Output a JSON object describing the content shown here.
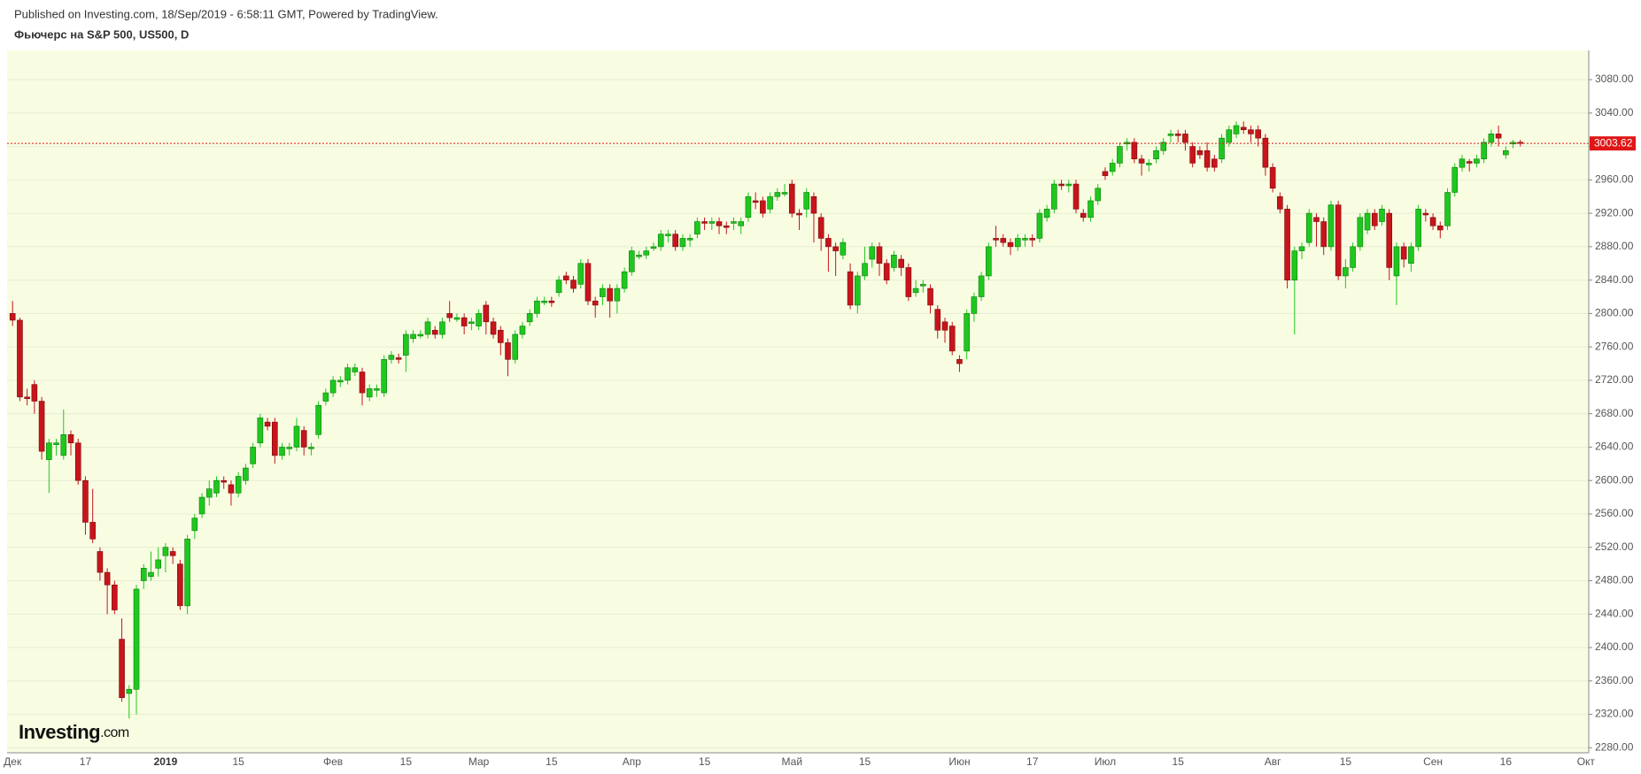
{
  "header": {
    "published": "Published on Investing.com, 18/Sep/2019 - 6:58:11 GMT, Powered by TradingView.",
    "symbol": "Фьючерс на S&P 500, US500, D"
  },
  "logo": {
    "main": "Investing",
    "suffix": ".com"
  },
  "chart_data": {
    "type": "candlestick",
    "categories": [
      "Дек",
      null,
      null,
      null,
      null,
      null,
      null,
      null,
      null,
      null,
      "17",
      null,
      null,
      null,
      null,
      null,
      null,
      null,
      null,
      null,
      null,
      "2019",
      null,
      null,
      null,
      null,
      null,
      null,
      null,
      null,
      null,
      "15",
      null,
      null,
      null,
      null,
      null,
      null,
      null,
      null,
      null,
      null,
      null,
      null,
      "Фев",
      null,
      null,
      null,
      null,
      null,
      null,
      null,
      null,
      null,
      "15",
      null,
      null,
      null,
      null,
      null,
      null,
      null,
      null,
      null,
      "Мар",
      null,
      null,
      null,
      null,
      null,
      null,
      null,
      null,
      null,
      "15",
      null,
      null,
      null,
      null,
      null,
      null,
      null,
      null,
      null,
      null,
      "Апр",
      null,
      null,
      null,
      null,
      null,
      null,
      null,
      null,
      null,
      "15",
      null,
      null,
      null,
      null,
      null,
      null,
      null,
      null,
      null,
      null,
      null,
      "Май",
      null,
      null,
      null,
      null,
      null,
      null,
      null,
      null,
      null,
      "15",
      null,
      null,
      null,
      null,
      null,
      null,
      null,
      null,
      null,
      null,
      null,
      null,
      "Июн",
      null,
      null,
      null,
      null,
      null,
      null,
      null,
      null,
      null,
      "17",
      null,
      null,
      null,
      null,
      null,
      null,
      null,
      null,
      null,
      "Июл",
      null,
      null,
      null,
      null,
      null,
      null,
      null,
      null,
      null,
      "15",
      null,
      null,
      null,
      null,
      null,
      null,
      null,
      null,
      null,
      null,
      null,
      null,
      "Авг",
      null,
      null,
      null,
      null,
      null,
      null,
      null,
      null,
      null,
      "15",
      null,
      null,
      null,
      null,
      null,
      null,
      null,
      null,
      null,
      null,
      null,
      "Сен",
      null,
      null,
      null,
      null,
      null,
      null,
      null,
      null,
      null,
      "16",
      null,
      null,
      null,
      null,
      null,
      null,
      null,
      null,
      null,
      null,
      "Окт"
    ],
    "open": [
      2800,
      2792,
      2700,
      2715,
      2695,
      2625,
      2643,
      2630,
      2655,
      2645,
      2600,
      2550,
      2515,
      2490,
      2475,
      2410,
      2345,
      2350,
      2480,
      2485,
      2495,
      2510,
      2515,
      2500,
      2450,
      2540,
      2560,
      2580,
      2585,
      2600,
      2595,
      2585,
      2600,
      2620,
      2645,
      2670,
      2670,
      2630,
      2638,
      2640,
      2660,
      2638,
      2655,
      2695,
      2705,
      2718,
      2720,
      2730,
      2730,
      2700,
      2708,
      2705,
      2745,
      2747,
      2750,
      2770,
      2773,
      2775,
      2780,
      2775,
      2800,
      2793,
      2795,
      2788,
      2785,
      2810,
      2790,
      2780,
      2765,
      2745,
      2775,
      2790,
      2800,
      2813,
      2815,
      2825,
      2845,
      2840,
      2835,
      2860,
      2815,
      2820,
      2830,
      2815,
      2830,
      2850,
      2868,
      2870,
      2878,
      2880,
      2893,
      2895,
      2880,
      2888,
      2895,
      2910,
      2908,
      2910,
      2905,
      2908,
      2905,
      2915,
      2935,
      2935,
      2925,
      2940,
      2943,
      2955,
      2920,
      2925,
      2940,
      2915,
      2890,
      2880,
      2870,
      2850,
      2810,
      2845,
      2865,
      2880,
      2860,
      2855,
      2865,
      2855,
      2825,
      2833,
      2830,
      2805,
      2790,
      2785,
      2745,
      2755,
      2800,
      2820,
      2845,
      2890,
      2890,
      2885,
      2880,
      2888,
      2890,
      2890,
      2915,
      2925,
      2955,
      2953,
      2955,
      2920,
      2915,
      2935,
      2970,
      2970,
      2980,
      3003,
      3005,
      2985,
      2978,
      2985,
      2995,
      3013,
      3015,
      3015,
      3000,
      2995,
      2995,
      2985,
      2985,
      3005,
      3015,
      3023,
      3020,
      3020,
      3010,
      2975,
      2940,
      2925,
      2840,
      2875,
      2885,
      2915,
      2910,
      2880,
      2930,
      2845,
      2855,
      2880,
      2900,
      2920,
      2910,
      2920,
      2845,
      2880,
      2860,
      2880,
      2920,
      2915,
      2905,
      2905,
      2945,
      2975,
      2982,
      2980,
      2985,
      3005,
      3015,
      2990,
      3003,
      3005,
      null,
      null,
      null,
      null,
      null,
      null,
      null,
      null,
      null
    ],
    "high": [
      2815,
      2795,
      2710,
      2720,
      2700,
      2650,
      2650,
      2685,
      2660,
      2650,
      2605,
      2590,
      2520,
      2495,
      2480,
      2435,
      2355,
      2475,
      2500,
      2515,
      2520,
      2525,
      2520,
      2505,
      2535,
      2560,
      2585,
      2600,
      2605,
      2605,
      2600,
      2610,
      2620,
      2645,
      2680,
      2675,
      2675,
      2645,
      2645,
      2675,
      2665,
      2645,
      2695,
      2710,
      2725,
      2725,
      2740,
      2740,
      2735,
      2715,
      2715,
      2750,
      2755,
      2752,
      2780,
      2780,
      2780,
      2795,
      2785,
      2795,
      2815,
      2800,
      2800,
      2795,
      2805,
      2815,
      2795,
      2785,
      2770,
      2780,
      2790,
      2805,
      2820,
      2820,
      2820,
      2845,
      2850,
      2845,
      2865,
      2865,
      2820,
      2835,
      2835,
      2835,
      2855,
      2880,
      2875,
      2880,
      2885,
      2900,
      2900,
      2900,
      2895,
      2895,
      2915,
      2915,
      2915,
      2915,
      2910,
      2915,
      2915,
      2945,
      2945,
      2940,
      2945,
      2950,
      2955,
      2960,
      2925,
      2950,
      2945,
      2920,
      2895,
      2885,
      2890,
      2860,
      2850,
      2880,
      2885,
      2885,
      2865,
      2875,
      2870,
      2860,
      2840,
      2840,
      2835,
      2810,
      2795,
      2790,
      2750,
      2805,
      2825,
      2850,
      2885,
      2905,
      2895,
      2890,
      2895,
      2895,
      2895,
      2925,
      2930,
      2960,
      2960,
      2960,
      2960,
      2925,
      2940,
      2955,
      2975,
      2985,
      3005,
      3010,
      3010,
      2990,
      2985,
      3000,
      3010,
      3020,
      3020,
      3020,
      3005,
      3000,
      3005,
      2990,
      3015,
      3025,
      3030,
      3030,
      3025,
      3025,
      3015,
      2980,
      2945,
      2930,
      2880,
      2885,
      2925,
      2920,
      2915,
      2935,
      2935,
      2865,
      2885,
      2920,
      2925,
      2925,
      2930,
      2925,
      2885,
      2885,
      2885,
      2930,
      2925,
      2920,
      2910,
      2950,
      2980,
      2990,
      2985,
      2990,
      3010,
      3020,
      3025,
      3000,
      3008,
      3008,
      null,
      null,
      null,
      null,
      null,
      null,
      null,
      null,
      null
    ],
    "low": [
      2785,
      2695,
      2690,
      2680,
      2625,
      2585,
      2630,
      2625,
      2630,
      2595,
      2535,
      2525,
      2480,
      2440,
      2440,
      2335,
      2315,
      2320,
      2470,
      2480,
      2485,
      2490,
      2500,
      2445,
      2440,
      2530,
      2555,
      2570,
      2580,
      2590,
      2570,
      2580,
      2595,
      2615,
      2640,
      2660,
      2620,
      2625,
      2630,
      2635,
      2630,
      2630,
      2650,
      2690,
      2700,
      2712,
      2715,
      2725,
      2690,
      2695,
      2700,
      2700,
      2740,
      2740,
      2730,
      2765,
      2770,
      2770,
      2770,
      2770,
      2790,
      2790,
      2775,
      2780,
      2780,
      2775,
      2770,
      2750,
      2725,
      2740,
      2770,
      2785,
      2795,
      2810,
      2808,
      2820,
      2835,
      2825,
      2830,
      2810,
      2795,
      2810,
      2795,
      2800,
      2825,
      2845,
      2865,
      2865,
      2875,
      2875,
      2885,
      2875,
      2875,
      2880,
      2890,
      2900,
      2900,
      2895,
      2895,
      2900,
      2895,
      2910,
      2925,
      2915,
      2920,
      2935,
      2940,
      2915,
      2900,
      2915,
      2885,
      2875,
      2850,
      2845,
      2865,
      2805,
      2800,
      2840,
      2855,
      2845,
      2835,
      2850,
      2845,
      2815,
      2820,
      2825,
      2800,
      2770,
      2765,
      2750,
      2730,
      2745,
      2790,
      2815,
      2840,
      2880,
      2880,
      2870,
      2875,
      2880,
      2880,
      2885,
      2910,
      2920,
      2948,
      2945,
      2920,
      2910,
      2910,
      2930,
      2960,
      2965,
      2975,
      2995,
      2980,
      2965,
      2970,
      2980,
      2990,
      3005,
      3005,
      2995,
      2975,
      2985,
      2970,
      2970,
      2980,
      3000,
      3010,
      3015,
      3005,
      3000,
      2965,
      2945,
      2920,
      2830,
      2775,
      2865,
      2880,
      2880,
      2870,
      2875,
      2840,
      2830,
      2850,
      2875,
      2895,
      2900,
      2905,
      2840,
      2810,
      2855,
      2850,
      2875,
      2910,
      2900,
      2890,
      2900,
      2940,
      2970,
      2970,
      2975,
      2980,
      3000,
      3000,
      2985,
      2998,
      3000,
      null,
      null,
      null,
      null,
      null,
      null,
      null,
      null,
      null
    ],
    "close": [
      2792,
      2700,
      2698,
      2695,
      2635,
      2645,
      2645,
      2655,
      2645,
      2600,
      2550,
      2530,
      2490,
      2475,
      2445,
      2340,
      2350,
      2470,
      2495,
      2490,
      2505,
      2520,
      2510,
      2450,
      2530,
      2555,
      2580,
      2590,
      2600,
      2598,
      2585,
      2605,
      2615,
      2640,
      2675,
      2665,
      2630,
      2640,
      2640,
      2665,
      2640,
      2640,
      2690,
      2705,
      2720,
      2720,
      2735,
      2735,
      2705,
      2710,
      2710,
      2745,
      2750,
      2745,
      2775,
      2775,
      2775,
      2790,
      2775,
      2790,
      2795,
      2795,
      2785,
      2790,
      2800,
      2790,
      2775,
      2765,
      2745,
      2775,
      2785,
      2800,
      2815,
      2815,
      2813,
      2840,
      2840,
      2830,
      2860,
      2815,
      2810,
      2830,
      2815,
      2830,
      2850,
      2875,
      2870,
      2875,
      2880,
      2895,
      2895,
      2880,
      2890,
      2890,
      2910,
      2908,
      2910,
      2905,
      2903,
      2910,
      2910,
      2940,
      2933,
      2920,
      2940,
      2945,
      2945,
      2920,
      2918,
      2945,
      2920,
      2890,
      2880,
      2875,
      2885,
      2810,
      2845,
      2860,
      2880,
      2860,
      2840,
      2870,
      2855,
      2820,
      2830,
      2835,
      2810,
      2780,
      2780,
      2755,
      2740,
      2800,
      2820,
      2845,
      2880,
      2888,
      2885,
      2880,
      2890,
      2890,
      2888,
      2920,
      2925,
      2955,
      2953,
      2955,
      2925,
      2915,
      2935,
      2950,
      2965,
      2980,
      3000,
      3005,
      2985,
      2980,
      2980,
      2995,
      3005,
      3015,
      3013,
      3005,
      2980,
      2990,
      2975,
      2975,
      3010,
      3020,
      3025,
      3020,
      3015,
      3010,
      2975,
      2950,
      2925,
      2840,
      2875,
      2880,
      2920,
      2910,
      2880,
      2930,
      2845,
      2855,
      2880,
      2915,
      2920,
      2905,
      2925,
      2855,
      2880,
      2865,
      2880,
      2925,
      2918,
      2905,
      2900,
      2945,
      2975,
      2985,
      2980,
      2985,
      3005,
      3015,
      3010,
      2995,
      3005,
      3003.62,
      null,
      null,
      null,
      null,
      null,
      null,
      null,
      null,
      null
    ],
    "up_color": "#1ec81e",
    "down_color": "#c8141b",
    "last_price": 3003.62,
    "last_price_color": "#e01616",
    "ylim": [
      2274,
      3115
    ],
    "yticks": [
      {
        "value": 2280,
        "label": "2280.00"
      },
      {
        "value": 2320,
        "label": "2320.00"
      },
      {
        "value": 2360,
        "label": "2360.00"
      },
      {
        "value": 2400,
        "label": "2400.00"
      },
      {
        "value": 2440,
        "label": "2440.00"
      },
      {
        "value": 2480,
        "label": "2480.00"
      },
      {
        "value": 2520,
        "label": "2520.00"
      },
      {
        "value": 2560,
        "label": "2560.00"
      },
      {
        "value": 2600,
        "label": "2600.00"
      },
      {
        "value": 2640,
        "label": "2640.00"
      },
      {
        "value": 2680,
        "label": "2680.00"
      },
      {
        "value": 2720,
        "label": "2720.00"
      },
      {
        "value": 2760,
        "label": "2760.00"
      },
      {
        "value": 2800,
        "label": "2800.00"
      },
      {
        "value": 2840,
        "label": "2840.00"
      },
      {
        "value": 2880,
        "label": "2880.00"
      },
      {
        "value": 2920,
        "label": "2920.00"
      },
      {
        "value": 2960,
        "label": "2960.00"
      },
      {
        "value": 3000,
        "label": "3000.00"
      },
      {
        "value": 3040,
        "label": "3040.00"
      },
      {
        "value": 3080,
        "label": "3080.00"
      }
    ],
    "grid": true
  }
}
